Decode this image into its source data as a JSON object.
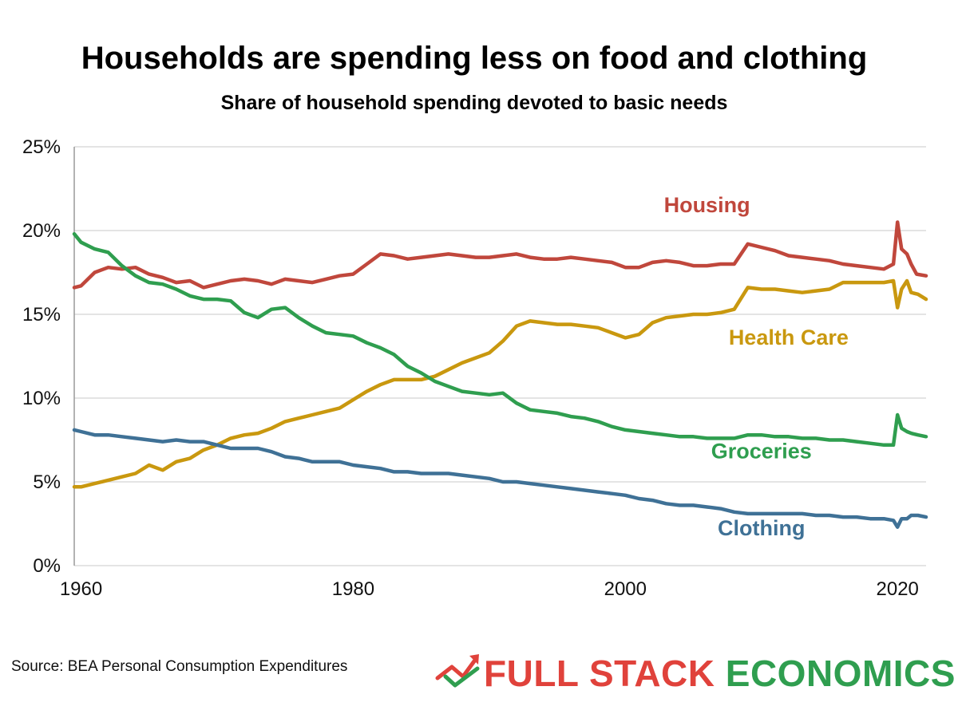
{
  "chart_data": {
    "type": "line",
    "title": "Households are spending less on food and clothing",
    "subtitle": "Share of household spending devoted to basic needs",
    "xlabel": "",
    "ylabel": "",
    "xlim": [
      1959.5,
      2022.1
    ],
    "ylim": [
      0,
      25
    ],
    "x_ticks": [
      1960,
      1980,
      2000,
      2020
    ],
    "x_tick_labels": [
      "1960",
      "1980",
      "2000",
      "2020"
    ],
    "y_ticks": [
      0,
      5,
      10,
      15,
      20,
      25
    ],
    "y_tick_labels": [
      "0%",
      "5%",
      "10%",
      "15%",
      "20%",
      "25%"
    ],
    "grid": true,
    "series": [
      {
        "name": "Housing",
        "label": "Housing",
        "color": "#c0473c",
        "points": [
          [
            1959.5,
            16.6
          ],
          [
            1960,
            16.7
          ],
          [
            1961,
            17.5
          ],
          [
            1962,
            17.8
          ],
          [
            1963,
            17.7
          ],
          [
            1964,
            17.8
          ],
          [
            1965,
            17.4
          ],
          [
            1966,
            17.2
          ],
          [
            1967,
            16.9
          ],
          [
            1968,
            17.0
          ],
          [
            1969,
            16.6
          ],
          [
            1970,
            16.8
          ],
          [
            1971,
            17.0
          ],
          [
            1972,
            17.1
          ],
          [
            1973,
            17.0
          ],
          [
            1974,
            16.8
          ],
          [
            1975,
            17.1
          ],
          [
            1976,
            17.0
          ],
          [
            1977,
            16.9
          ],
          [
            1978,
            17.1
          ],
          [
            1979,
            17.3
          ],
          [
            1980,
            17.4
          ],
          [
            1981,
            18.0
          ],
          [
            1982,
            18.6
          ],
          [
            1983,
            18.5
          ],
          [
            1984,
            18.3
          ],
          [
            1985,
            18.4
          ],
          [
            1986,
            18.5
          ],
          [
            1987,
            18.6
          ],
          [
            1988,
            18.5
          ],
          [
            1989,
            18.4
          ],
          [
            1990,
            18.4
          ],
          [
            1991,
            18.5
          ],
          [
            1992,
            18.6
          ],
          [
            1993,
            18.4
          ],
          [
            1994,
            18.3
          ],
          [
            1995,
            18.3
          ],
          [
            1996,
            18.4
          ],
          [
            1997,
            18.3
          ],
          [
            1998,
            18.2
          ],
          [
            1999,
            18.1
          ],
          [
            2000,
            17.8
          ],
          [
            2001,
            17.8
          ],
          [
            2002,
            18.1
          ],
          [
            2003,
            18.2
          ],
          [
            2004,
            18.1
          ],
          [
            2005,
            17.9
          ],
          [
            2006,
            17.9
          ],
          [
            2007,
            18.0
          ],
          [
            2008,
            18.0
          ],
          [
            2009,
            19.2
          ],
          [
            2010,
            19.0
          ],
          [
            2011,
            18.8
          ],
          [
            2012,
            18.5
          ],
          [
            2013,
            18.4
          ],
          [
            2014,
            18.3
          ],
          [
            2015,
            18.2
          ],
          [
            2016,
            18.0
          ],
          [
            2017,
            17.9
          ],
          [
            2018,
            17.8
          ],
          [
            2019,
            17.7
          ],
          [
            2019.7,
            18.0
          ],
          [
            2020.0,
            20.5
          ],
          [
            2020.3,
            18.9
          ],
          [
            2020.7,
            18.6
          ],
          [
            2021.0,
            18.0
          ],
          [
            2021.4,
            17.4
          ],
          [
            2022.1,
            17.3
          ]
        ]
      },
      {
        "name": "Health Care",
        "label": "Health Care",
        "color": "#c9980f",
        "points": [
          [
            1959.5,
            4.7
          ],
          [
            1960,
            4.7
          ],
          [
            1961,
            4.9
          ],
          [
            1962,
            5.1
          ],
          [
            1963,
            5.3
          ],
          [
            1964,
            5.5
          ],
          [
            1965,
            6.0
          ],
          [
            1966,
            5.7
          ],
          [
            1967,
            6.2
          ],
          [
            1968,
            6.4
          ],
          [
            1969,
            6.9
          ],
          [
            1970,
            7.2
          ],
          [
            1971,
            7.6
          ],
          [
            1972,
            7.8
          ],
          [
            1973,
            7.9
          ],
          [
            1974,
            8.2
          ],
          [
            1975,
            8.6
          ],
          [
            1976,
            8.8
          ],
          [
            1977,
            9.0
          ],
          [
            1978,
            9.2
          ],
          [
            1979,
            9.4
          ],
          [
            1980,
            9.9
          ],
          [
            1981,
            10.4
          ],
          [
            1982,
            10.8
          ],
          [
            1983,
            11.1
          ],
          [
            1984,
            11.1
          ],
          [
            1985,
            11.1
          ],
          [
            1986,
            11.3
          ],
          [
            1987,
            11.7
          ],
          [
            1988,
            12.1
          ],
          [
            1989,
            12.4
          ],
          [
            1990,
            12.7
          ],
          [
            1991,
            13.4
          ],
          [
            1992,
            14.3
          ],
          [
            1993,
            14.6
          ],
          [
            1994,
            14.5
          ],
          [
            1995,
            14.4
          ],
          [
            1996,
            14.4
          ],
          [
            1997,
            14.3
          ],
          [
            1998,
            14.2
          ],
          [
            1999,
            13.9
          ],
          [
            2000,
            13.6
          ],
          [
            2001,
            13.8
          ],
          [
            2002,
            14.5
          ],
          [
            2003,
            14.8
          ],
          [
            2004,
            14.9
          ],
          [
            2005,
            15.0
          ],
          [
            2006,
            15.0
          ],
          [
            2007,
            15.1
          ],
          [
            2008,
            15.3
          ],
          [
            2009,
            16.6
          ],
          [
            2010,
            16.5
          ],
          [
            2011,
            16.5
          ],
          [
            2012,
            16.4
          ],
          [
            2013,
            16.3
          ],
          [
            2014,
            16.4
          ],
          [
            2015,
            16.5
          ],
          [
            2016,
            16.9
          ],
          [
            2017,
            16.9
          ],
          [
            2018,
            16.9
          ],
          [
            2019,
            16.9
          ],
          [
            2019.7,
            17.0
          ],
          [
            2020.0,
            15.4
          ],
          [
            2020.3,
            16.5
          ],
          [
            2020.7,
            17.0
          ],
          [
            2021.0,
            16.3
          ],
          [
            2021.5,
            16.2
          ],
          [
            2022.1,
            15.9
          ]
        ]
      },
      {
        "name": "Groceries",
        "label": "Groceries",
        "color": "#2f9e4f",
        "points": [
          [
            1959.5,
            19.8
          ],
          [
            1960,
            19.3
          ],
          [
            1961,
            18.9
          ],
          [
            1962,
            18.7
          ],
          [
            1963,
            17.9
          ],
          [
            1964,
            17.3
          ],
          [
            1965,
            16.9
          ],
          [
            1966,
            16.8
          ],
          [
            1967,
            16.5
          ],
          [
            1968,
            16.1
          ],
          [
            1969,
            15.9
          ],
          [
            1970,
            15.9
          ],
          [
            1971,
            15.8
          ],
          [
            1972,
            15.1
          ],
          [
            1973,
            14.8
          ],
          [
            1974,
            15.3
          ],
          [
            1975,
            15.4
          ],
          [
            1976,
            14.8
          ],
          [
            1977,
            14.3
          ],
          [
            1978,
            13.9
          ],
          [
            1979,
            13.8
          ],
          [
            1980,
            13.7
          ],
          [
            1981,
            13.3
          ],
          [
            1982,
            13.0
          ],
          [
            1983,
            12.6
          ],
          [
            1984,
            11.9
          ],
          [
            1985,
            11.5
          ],
          [
            1986,
            11.0
          ],
          [
            1987,
            10.7
          ],
          [
            1988,
            10.4
          ],
          [
            1989,
            10.3
          ],
          [
            1990,
            10.2
          ],
          [
            1991,
            10.3
          ],
          [
            1992,
            9.7
          ],
          [
            1993,
            9.3
          ],
          [
            1994,
            9.2
          ],
          [
            1995,
            9.1
          ],
          [
            1996,
            8.9
          ],
          [
            1997,
            8.8
          ],
          [
            1998,
            8.6
          ],
          [
            1999,
            8.3
          ],
          [
            2000,
            8.1
          ],
          [
            2001,
            8.0
          ],
          [
            2002,
            7.9
          ],
          [
            2003,
            7.8
          ],
          [
            2004,
            7.7
          ],
          [
            2005,
            7.7
          ],
          [
            2006,
            7.6
          ],
          [
            2007,
            7.6
          ],
          [
            2008,
            7.6
          ],
          [
            2009,
            7.8
          ],
          [
            2010,
            7.8
          ],
          [
            2011,
            7.7
          ],
          [
            2012,
            7.7
          ],
          [
            2013,
            7.6
          ],
          [
            2014,
            7.6
          ],
          [
            2015,
            7.5
          ],
          [
            2016,
            7.5
          ],
          [
            2017,
            7.4
          ],
          [
            2018,
            7.3
          ],
          [
            2019,
            7.2
          ],
          [
            2019.7,
            7.2
          ],
          [
            2020.0,
            9.0
          ],
          [
            2020.3,
            8.2
          ],
          [
            2020.7,
            8.0
          ],
          [
            2021.0,
            7.9
          ],
          [
            2021.5,
            7.8
          ],
          [
            2022.1,
            7.7
          ]
        ]
      },
      {
        "name": "Clothing",
        "label": "Clothing",
        "color": "#3f7196",
        "points": [
          [
            1959.5,
            8.1
          ],
          [
            1960,
            8.0
          ],
          [
            1961,
            7.8
          ],
          [
            1962,
            7.8
          ],
          [
            1963,
            7.7
          ],
          [
            1964,
            7.6
          ],
          [
            1965,
            7.5
          ],
          [
            1966,
            7.4
          ],
          [
            1967,
            7.5
          ],
          [
            1968,
            7.4
          ],
          [
            1969,
            7.4
          ],
          [
            1970,
            7.2
          ],
          [
            1971,
            7.0
          ],
          [
            1972,
            7.0
          ],
          [
            1973,
            7.0
          ],
          [
            1974,
            6.8
          ],
          [
            1975,
            6.5
          ],
          [
            1976,
            6.4
          ],
          [
            1977,
            6.2
          ],
          [
            1978,
            6.2
          ],
          [
            1979,
            6.2
          ],
          [
            1980,
            6.0
          ],
          [
            1981,
            5.9
          ],
          [
            1982,
            5.8
          ],
          [
            1983,
            5.6
          ],
          [
            1984,
            5.6
          ],
          [
            1985,
            5.5
          ],
          [
            1986,
            5.5
          ],
          [
            1987,
            5.5
          ],
          [
            1988,
            5.4
          ],
          [
            1989,
            5.3
          ],
          [
            1990,
            5.2
          ],
          [
            1991,
            5.0
          ],
          [
            1992,
            5.0
          ],
          [
            1993,
            4.9
          ],
          [
            1994,
            4.8
          ],
          [
            1995,
            4.7
          ],
          [
            1996,
            4.6
          ],
          [
            1997,
            4.5
          ],
          [
            1998,
            4.4
          ],
          [
            1999,
            4.3
          ],
          [
            2000,
            4.2
          ],
          [
            2001,
            4.0
          ],
          [
            2002,
            3.9
          ],
          [
            2003,
            3.7
          ],
          [
            2004,
            3.6
          ],
          [
            2005,
            3.6
          ],
          [
            2006,
            3.5
          ],
          [
            2007,
            3.4
          ],
          [
            2008,
            3.2
          ],
          [
            2009,
            3.1
          ],
          [
            2010,
            3.1
          ],
          [
            2011,
            3.1
          ],
          [
            2012,
            3.1
          ],
          [
            2013,
            3.1
          ],
          [
            2014,
            3.0
          ],
          [
            2015,
            3.0
          ],
          [
            2016,
            2.9
          ],
          [
            2017,
            2.9
          ],
          [
            2018,
            2.8
          ],
          [
            2019,
            2.8
          ],
          [
            2019.7,
            2.7
          ],
          [
            2020.0,
            2.3
          ],
          [
            2020.3,
            2.8
          ],
          [
            2020.7,
            2.8
          ],
          [
            2021.0,
            3.0
          ],
          [
            2021.5,
            3.0
          ],
          [
            2022.1,
            2.9
          ]
        ]
      }
    ],
    "annotations": [
      {
        "text": "Housing",
        "series": "Housing",
        "x": 2006,
        "y": 21.1
      },
      {
        "text": "Health Care",
        "series": "Health Care",
        "x": 2012,
        "y": 13.2
      },
      {
        "text": "Groceries",
        "series": "Groceries",
        "x": 2010,
        "y": 6.4
      },
      {
        "text": "Clothing",
        "series": "Clothing",
        "x": 2010,
        "y": 1.8
      }
    ]
  },
  "footer": {
    "source": "Source: BEA Personal Consumption Expenditures",
    "brand_left": "FULL STACK",
    "brand_right": "ECONOMICS",
    "brand_left_color": "#e0423b",
    "brand_right_color": "#2f9e4f"
  },
  "logo": {
    "icon": "trending-arrow-check-icon",
    "arrow_color": "#e0423b",
    "check_color": "#2f9e4f"
  }
}
